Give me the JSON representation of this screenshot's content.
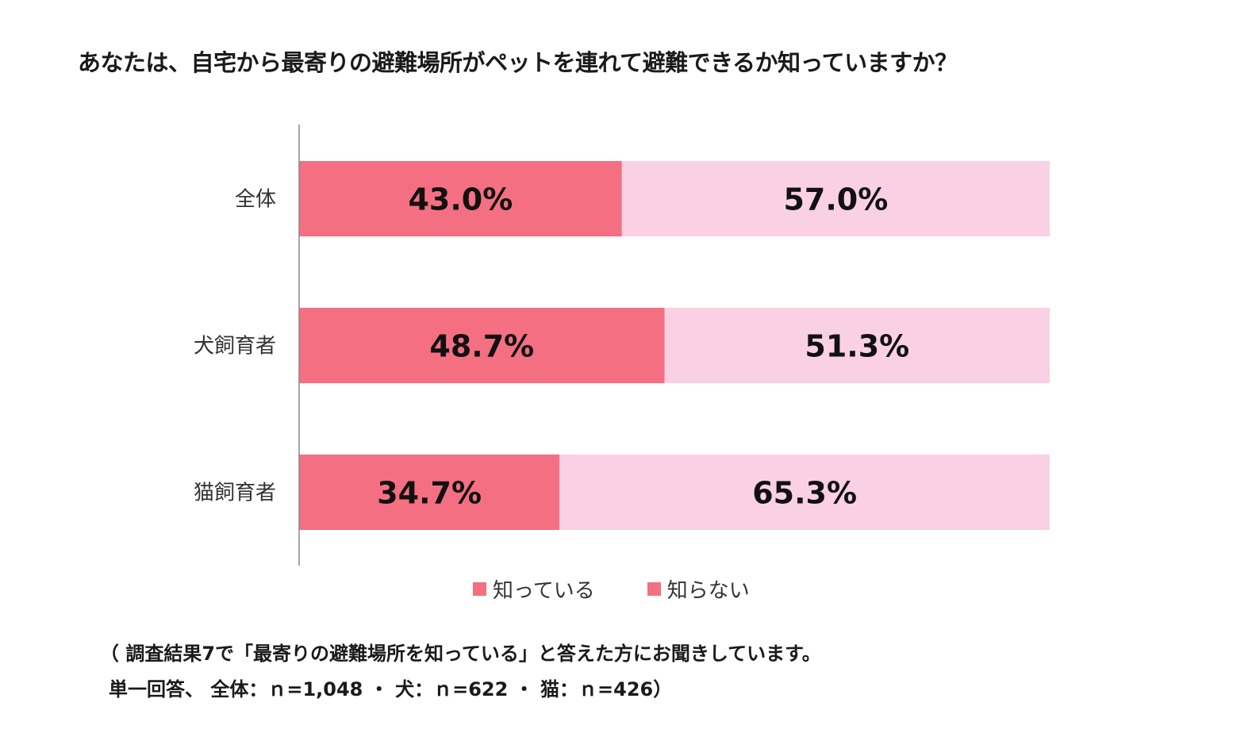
{
  "title": "あなたは、自宅から最寄りの避難場所がペットを連れて避難できるか知っていますか？",
  "chart_data": {
    "type": "bar",
    "orientation": "horizontal",
    "stacked": true,
    "categories": [
      "全体",
      "犬飼育者",
      "猫飼育者"
    ],
    "series": [
      {
        "name": "知っている",
        "values": [
          43.0,
          48.7,
          34.7
        ],
        "labels": [
          "43.0%",
          "48.7%",
          "34.7%"
        ],
        "color": "#f56f82"
      },
      {
        "name": "知らない",
        "values": [
          57.0,
          51.3,
          65.3
        ],
        "labels": [
          "57.0%",
          "51.3%",
          "65.3%"
        ],
        "color": "#fad0e4"
      }
    ],
    "xlim": [
      0,
      100
    ],
    "grid": false,
    "legend_position": "bottom"
  },
  "legend": {
    "known": "知っている",
    "unknown": "知らない",
    "known_color": "#f56f82",
    "unknown_color": "#f56f82"
  },
  "notes": {
    "line1": "（ 調査結果7で「最寄りの避難場所を知っている」と答えた方にお聞きしています。",
    "line2": "単一回答、 全体：ｎ=1,048 ・ 犬：ｎ=622 ・ 猫：ｎ=426）"
  }
}
